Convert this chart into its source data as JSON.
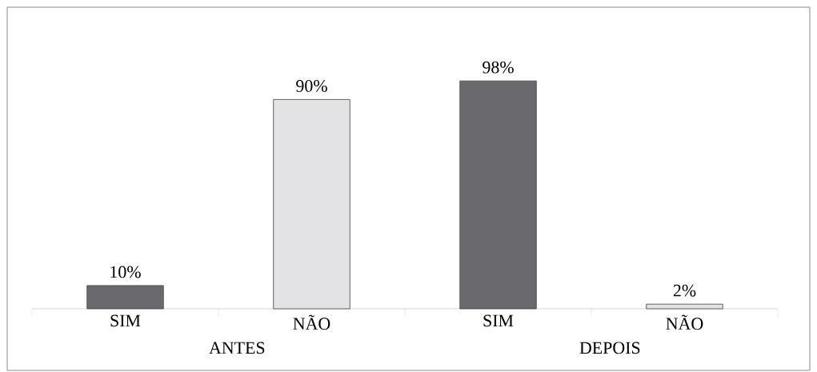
{
  "chart_data": {
    "type": "bar",
    "categories": [
      "SIM",
      "NÃO",
      "SIM",
      "NÃO"
    ],
    "values": [
      10,
      90,
      98,
      2
    ],
    "colors": [
      "#6a6a6e",
      "#e3e3e5",
      "#6a6a6e",
      "#e3e3e5"
    ],
    "value_labels": [
      "10%",
      "90%",
      "98%",
      "2%"
    ],
    "annotations": [
      "ANTES",
      "DEPOIS"
    ]
  }
}
